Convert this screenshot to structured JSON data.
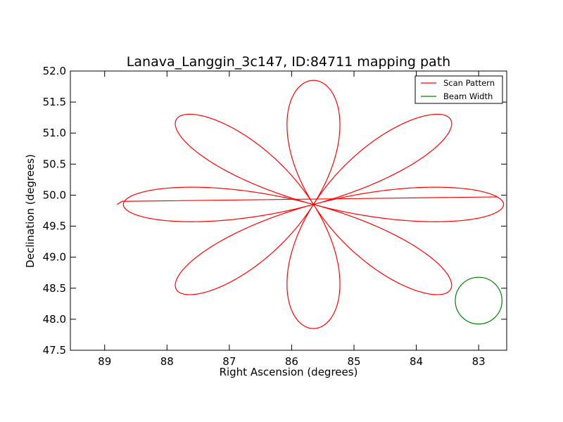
{
  "chart_data": {
    "type": "line",
    "title": "Lanava_Langgin_3c147, ID:84711 mapping path",
    "xlabel": "Right Ascension (degrees)",
    "ylabel": "Declination (degrees)",
    "xlim": [
      89.55,
      82.55
    ],
    "ylim": [
      47.5,
      52.0
    ],
    "x_ticks": [
      89,
      88,
      87,
      86,
      85,
      84,
      83
    ],
    "y_ticks": [
      "47.5",
      "48.0",
      "48.5",
      "49.0",
      "49.5",
      "50.0",
      "50.5",
      "51.0",
      "51.5",
      "52.0"
    ],
    "grid": false,
    "legend_position": "top-right",
    "series": [
      {
        "name": "Scan Pattern",
        "color": "#ff0000",
        "pattern": "rose",
        "center": [
          85.65,
          49.85
        ],
        "petals": 8,
        "ra_amplitude": 3.05,
        "dec_amplitude": 2.0,
        "lead_in": {
          "x": [
            88.8,
            88.72
          ],
          "y": [
            49.85,
            49.9
          ]
        }
      },
      {
        "name": "Beam Width",
        "color": "#008000",
        "pattern": "circle",
        "center": [
          83.0,
          48.3
        ],
        "radius": 0.375
      }
    ]
  }
}
